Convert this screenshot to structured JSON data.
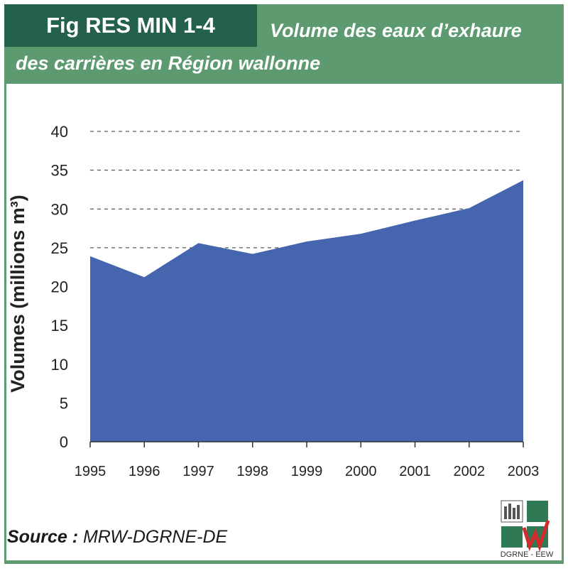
{
  "header": {
    "fig_prefix": "Fig",
    "fig_id": "RES MIN 1-4",
    "title_line1": "Volume des eaux d’exhaure",
    "title_line2": "des carrières en Région wallonne"
  },
  "source": {
    "label": "Source :",
    "value": "MRW-DGRNE-DE"
  },
  "logo": {
    "text": "DGRNE - EEW"
  },
  "colors": {
    "header_bg": "#5d9a70",
    "fig_box_bg": "#24614a",
    "area_fill": "#4565ae"
  },
  "chart_data": {
    "type": "area",
    "title": "Volume des eaux d’exhaure des carrières en Région wallonne",
    "ylabel": "Volumes (millions m³)",
    "xlabel": "",
    "x": [
      "1995",
      "1996",
      "1997",
      "1998",
      "1999",
      "2000",
      "2001",
      "2002",
      "2003"
    ],
    "series": [
      {
        "values": [
          23.9,
          21.2,
          25.6,
          24.2,
          25.8,
          26.8,
          28.5,
          30.1,
          33.7
        ]
      }
    ],
    "ylim": [
      0,
      40
    ],
    "yticks": [
      0,
      5,
      10,
      15,
      20,
      25,
      30,
      35,
      40
    ],
    "grid": "horizontal-dashed",
    "legend": "none"
  }
}
